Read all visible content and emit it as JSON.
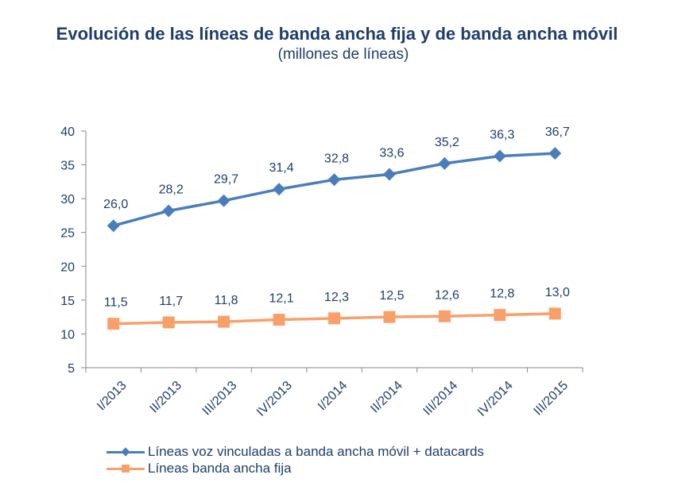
{
  "chart_data": {
    "type": "line",
    "title": "Evolución de las líneas de banda ancha fija y de banda ancha móvil",
    "subtitle": "(millones de líneas)",
    "xlabel": "",
    "ylabel": "",
    "categories": [
      "I/2013",
      "II/2013",
      "III/2013",
      "IV/2013",
      "I/2014",
      "II/2014",
      "III/2014",
      "IV/2014",
      "III/2015"
    ],
    "yticks": [
      5,
      10,
      15,
      20,
      25,
      30,
      35,
      40
    ],
    "ylim": [
      5,
      40
    ],
    "grid": false,
    "legend_position": "bottom-left",
    "series": [
      {
        "name": "Líneas voz vinculadas a banda ancha móvil + datacards",
        "marker": "diamond",
        "color": "#4a7ebb",
        "values": [
          26.0,
          28.2,
          29.7,
          31.4,
          32.8,
          33.6,
          35.2,
          36.3,
          36.7
        ],
        "labels": [
          "26,0",
          "28,2",
          "29,7",
          "31,4",
          "32,8",
          "33,6",
          "35,2",
          "36,3",
          "36,7"
        ]
      },
      {
        "name": "Líneas banda ancha fija",
        "marker": "square",
        "color": "#f9a06a",
        "values": [
          11.5,
          11.7,
          11.8,
          12.1,
          12.3,
          12.5,
          12.6,
          12.8,
          13.0
        ],
        "labels": [
          "11,5",
          "11,7",
          "11,8",
          "12,1",
          "12,3",
          "12,5",
          "12,6",
          "12,8",
          "13,0"
        ]
      }
    ]
  }
}
